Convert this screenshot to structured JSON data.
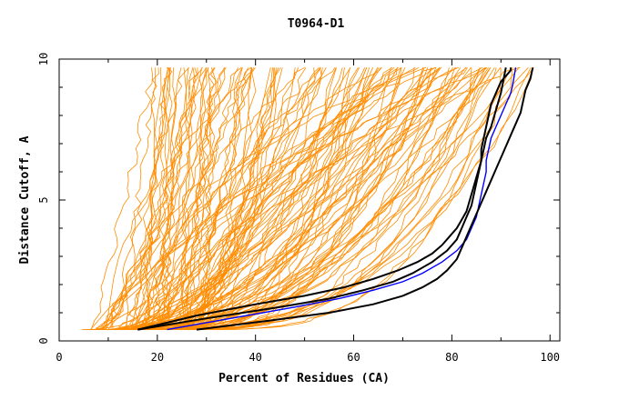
{
  "chart_data": {
    "type": "line",
    "title": "T0964-D1",
    "xlabel": "Percent of Residues (CA)",
    "ylabel": "Distance Cutoff, A",
    "xlim": [
      0,
      102
    ],
    "ylim": [
      0,
      10
    ],
    "x_ticks": [
      "0",
      "20",
      "40",
      "60",
      "80",
      "100"
    ],
    "y_ticks": [
      "0",
      "5",
      "10"
    ],
    "grid": false,
    "colors": {
      "background_models": "#ff8c00",
      "highlight_black": "#000000",
      "highlight_blue": "#0000ff"
    },
    "series": [
      {
        "color": "#000000",
        "x": [
          16,
          30,
          45,
          55,
          62,
          68,
          72,
          76,
          79,
          81,
          82,
          83,
          84,
          84.5,
          85,
          85.5,
          86,
          86,
          86.5,
          87,
          87.5,
          88,
          89,
          90,
          91,
          92,
          92
        ],
        "y": [
          0.4,
          0.8,
          1.2,
          1.5,
          1.8,
          2.1,
          2.4,
          2.8,
          3.2,
          3.6,
          4.0,
          4.4,
          4.8,
          5.2,
          5.6,
          6.0,
          6.4,
          6.8,
          7.2,
          7.6,
          8.0,
          8.4,
          8.8,
          9.2,
          9.4,
          9.6,
          9.7
        ]
      },
      {
        "color": "#0000ff",
        "x": [
          22,
          35,
          48,
          57,
          64,
          70,
          74,
          78,
          81,
          83,
          84,
          85,
          85.5,
          86,
          86.5,
          87,
          87,
          87.5,
          88,
          89,
          90,
          91,
          92,
          92.5,
          93
        ],
        "y": [
          0.4,
          0.8,
          1.2,
          1.5,
          1.8,
          2.1,
          2.4,
          2.8,
          3.2,
          3.6,
          4.0,
          4.4,
          4.8,
          5.2,
          5.6,
          6.0,
          6.4,
          6.8,
          7.2,
          7.6,
          8.0,
          8.4,
          8.8,
          9.2,
          9.7
        ]
      },
      {
        "color": "#000000",
        "x": [
          28,
          42,
          55,
          64,
          70,
          74,
          77,
          79,
          81,
          82,
          83,
          84,
          85,
          86,
          87,
          88,
          89,
          90,
          91,
          92,
          93,
          94,
          94.5,
          95,
          96,
          96.5
        ],
        "y": [
          0.4,
          0.7,
          1.0,
          1.3,
          1.6,
          1.9,
          2.2,
          2.5,
          2.9,
          3.3,
          3.7,
          4.1,
          4.5,
          4.9,
          5.3,
          5.7,
          6.1,
          6.5,
          6.9,
          7.3,
          7.7,
          8.1,
          8.5,
          8.9,
          9.3,
          9.7
        ]
      },
      {
        "color": "#000000",
        "x": [
          16,
          28,
          40,
          50,
          58,
          64,
          69,
          73,
          76,
          78,
          79.5,
          81,
          82,
          83,
          83.5,
          84,
          84.5,
          85,
          85.5,
          86,
          86.5,
          87,
          88,
          89,
          90,
          91
        ],
        "y": [
          0.4,
          0.9,
          1.3,
          1.6,
          1.9,
          2.2,
          2.5,
          2.8,
          3.1,
          3.4,
          3.7,
          4.0,
          4.3,
          4.6,
          4.9,
          5.2,
          5.5,
          5.8,
          6.1,
          6.4,
          6.8,
          7.2,
          7.6,
          8.2,
          8.8,
          9.7
        ]
      }
    ],
    "background_model_count": 140
  }
}
